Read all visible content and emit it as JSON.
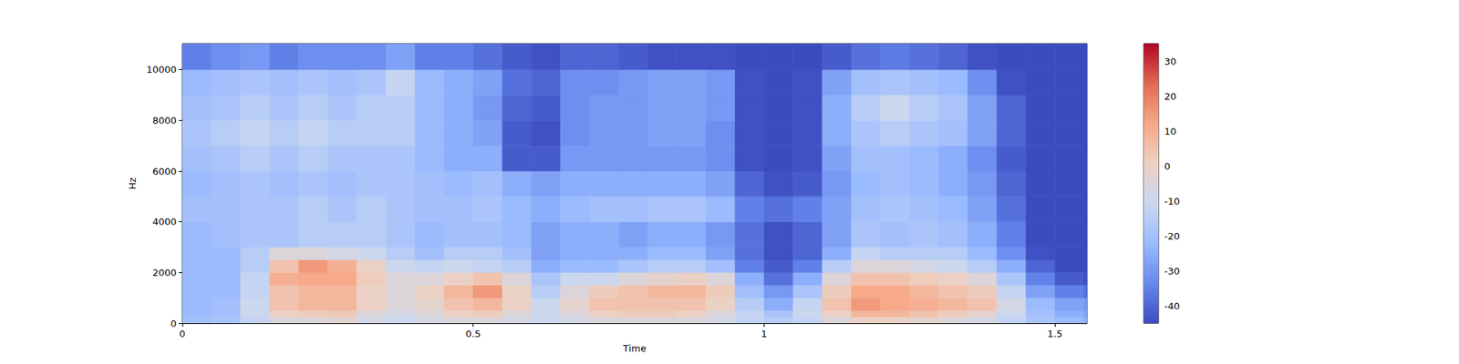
{
  "chart_data": {
    "type": "heatmap",
    "xlabel": "Time",
    "ylabel": "Hz",
    "xlim": [
      0,
      1.555
    ],
    "ylim": [
      0,
      11025
    ],
    "xticks": [
      0,
      0.5,
      1,
      1.5
    ],
    "yticks": [
      0,
      2000,
      4000,
      6000,
      8000,
      10000
    ],
    "grid": false,
    "x_edges": [
      0,
      0.05,
      0.1,
      0.15,
      0.2,
      0.25,
      0.3,
      0.35,
      0.4,
      0.45,
      0.5,
      0.55,
      0.6,
      0.65,
      0.7,
      0.75,
      0.8,
      0.85,
      0.9,
      0.95,
      1.0,
      1.05,
      1.1,
      1.15,
      1.2,
      1.25,
      1.3,
      1.35,
      1.4,
      1.45,
      1.5,
      1.55,
      1.555
    ],
    "y_edges": [
      0,
      250,
      500,
      1000,
      1500,
      2000,
      2500,
      3000,
      4000,
      5000,
      6000,
      7000,
      8000,
      9000,
      10000,
      11025
    ],
    "cells": [
      [
        -20,
        -18,
        -12,
        -5,
        -5,
        -3,
        -8,
        -10,
        -8,
        -5,
        -5,
        -8,
        -10,
        -8,
        -5,
        -5,
        -5,
        -5,
        -8,
        -12,
        -15,
        -12,
        -5,
        0,
        0,
        -2,
        -5,
        -8,
        -12,
        -18,
        -22,
        -25
      ],
      [
        -22,
        -20,
        -10,
        0,
        2,
        3,
        -5,
        -8,
        -5,
        0,
        2,
        -5,
        -10,
        -5,
        0,
        2,
        2,
        0,
        -5,
        -12,
        -18,
        -10,
        0,
        8,
        8,
        5,
        2,
        -2,
        -10,
        -20,
        -25,
        -28
      ],
      [
        -22,
        -20,
        -10,
        5,
        8,
        8,
        0,
        -5,
        -2,
        5,
        8,
        0,
        -10,
        -2,
        5,
        5,
        5,
        5,
        0,
        -15,
        -25,
        -12,
        5,
        15,
        12,
        10,
        8,
        5,
        -8,
        -22,
        -28,
        -30
      ],
      [
        -22,
        -22,
        -12,
        5,
        8,
        8,
        0,
        -5,
        0,
        8,
        15,
        0,
        -15,
        -5,
        2,
        5,
        8,
        8,
        2,
        -20,
        -30,
        -18,
        2,
        12,
        12,
        8,
        5,
        2,
        -12,
        -28,
        -35,
        -38
      ],
      [
        -22,
        -22,
        -12,
        10,
        12,
        12,
        2,
        -5,
        -5,
        0,
        5,
        -5,
        -18,
        -10,
        -10,
        -5,
        -2,
        0,
        -5,
        -25,
        -38,
        -25,
        -5,
        5,
        5,
        2,
        0,
        -5,
        -18,
        -35,
        -42,
        -44
      ],
      [
        -22,
        -22,
        -15,
        5,
        15,
        10,
        0,
        -10,
        -12,
        -10,
        -12,
        -15,
        -25,
        -22,
        -22,
        -18,
        -15,
        -15,
        -20,
        -35,
        -42,
        -35,
        -15,
        -5,
        -5,
        -8,
        -10,
        -15,
        -25,
        -40,
        -45,
        -45
      ],
      [
        -22,
        -22,
        -15,
        -5,
        -5,
        -8,
        -10,
        -15,
        -20,
        -15,
        -15,
        -20,
        -28,
        -25,
        -25,
        -25,
        -22,
        -22,
        -28,
        -38,
        -44,
        -40,
        -25,
        -12,
        -15,
        -15,
        -15,
        -22,
        -32,
        -44,
        -45,
        -45
      ],
      [
        -22,
        -20,
        -18,
        -18,
        -15,
        -15,
        -15,
        -18,
        -22,
        -20,
        -20,
        -22,
        -28,
        -25,
        -25,
        -28,
        -25,
        -25,
        -30,
        -38,
        -44,
        -40,
        -28,
        -18,
        -20,
        -18,
        -20,
        -25,
        -35,
        -45,
        -45,
        -45
      ],
      [
        -20,
        -20,
        -18,
        -18,
        -15,
        -18,
        -15,
        -18,
        -20,
        -20,
        -18,
        -22,
        -25,
        -22,
        -20,
        -20,
        -18,
        -18,
        -22,
        -35,
        -38,
        -35,
        -28,
        -20,
        -18,
        -20,
        -22,
        -28,
        -38,
        -45,
        -45,
        -45
      ],
      [
        -22,
        -20,
        -18,
        -20,
        -18,
        -20,
        -18,
        -18,
        -20,
        -22,
        -20,
        -25,
        -28,
        -25,
        -25,
        -25,
        -25,
        -25,
        -28,
        -40,
        -44,
        -42,
        -30,
        -22,
        -20,
        -22,
        -25,
        -30,
        -40,
        -45,
        -45,
        -45
      ],
      [
        -20,
        -18,
        -15,
        -18,
        -15,
        -18,
        -18,
        -18,
        -22,
        -25,
        -25,
        -42,
        -42,
        -30,
        -30,
        -30,
        -30,
        -30,
        -32,
        -44,
        -45,
        -44,
        -28,
        -20,
        -20,
        -22,
        -25,
        -32,
        -42,
        -45,
        -45,
        -45
      ],
      [
        -18,
        -15,
        -12,
        -15,
        -12,
        -15,
        -15,
        -15,
        -22,
        -25,
        -28,
        -42,
        -44,
        -32,
        -30,
        -30,
        -28,
        -28,
        -32,
        -44,
        -45,
        -44,
        -25,
        -18,
        -15,
        -18,
        -20,
        -28,
        -40,
        -45,
        -45,
        -45
      ],
      [
        -20,
        -18,
        -15,
        -18,
        -15,
        -18,
        -15,
        -15,
        -22,
        -25,
        -30,
        -40,
        -42,
        -32,
        -30,
        -30,
        -28,
        -28,
        -30,
        -44,
        -45,
        -44,
        -25,
        -15,
        -10,
        -15,
        -18,
        -28,
        -40,
        -45,
        -45,
        -45
      ],
      [
        -22,
        -20,
        -18,
        -20,
        -18,
        -20,
        -18,
        -12,
        -22,
        -25,
        -28,
        -38,
        -40,
        -32,
        -32,
        -30,
        -28,
        -28,
        -30,
        -44,
        -45,
        -44,
        -28,
        -20,
        -18,
        -20,
        -22,
        -32,
        -44,
        -45,
        -45,
        -45
      ],
      [
        -35,
        -32,
        -30,
        -35,
        -32,
        -32,
        -32,
        -28,
        -35,
        -35,
        -38,
        -42,
        -44,
        -40,
        -40,
        -42,
        -44,
        -44,
        -44,
        -45,
        -45,
        -45,
        -42,
        -38,
        -36,
        -38,
        -40,
        -44,
        -45,
        -45,
        -45,
        -45
      ]
    ],
    "color_range": [
      -45,
      35
    ],
    "colorbar_ticks": [
      -40,
      -30,
      -20,
      -10,
      0,
      10,
      20,
      30
    ]
  }
}
